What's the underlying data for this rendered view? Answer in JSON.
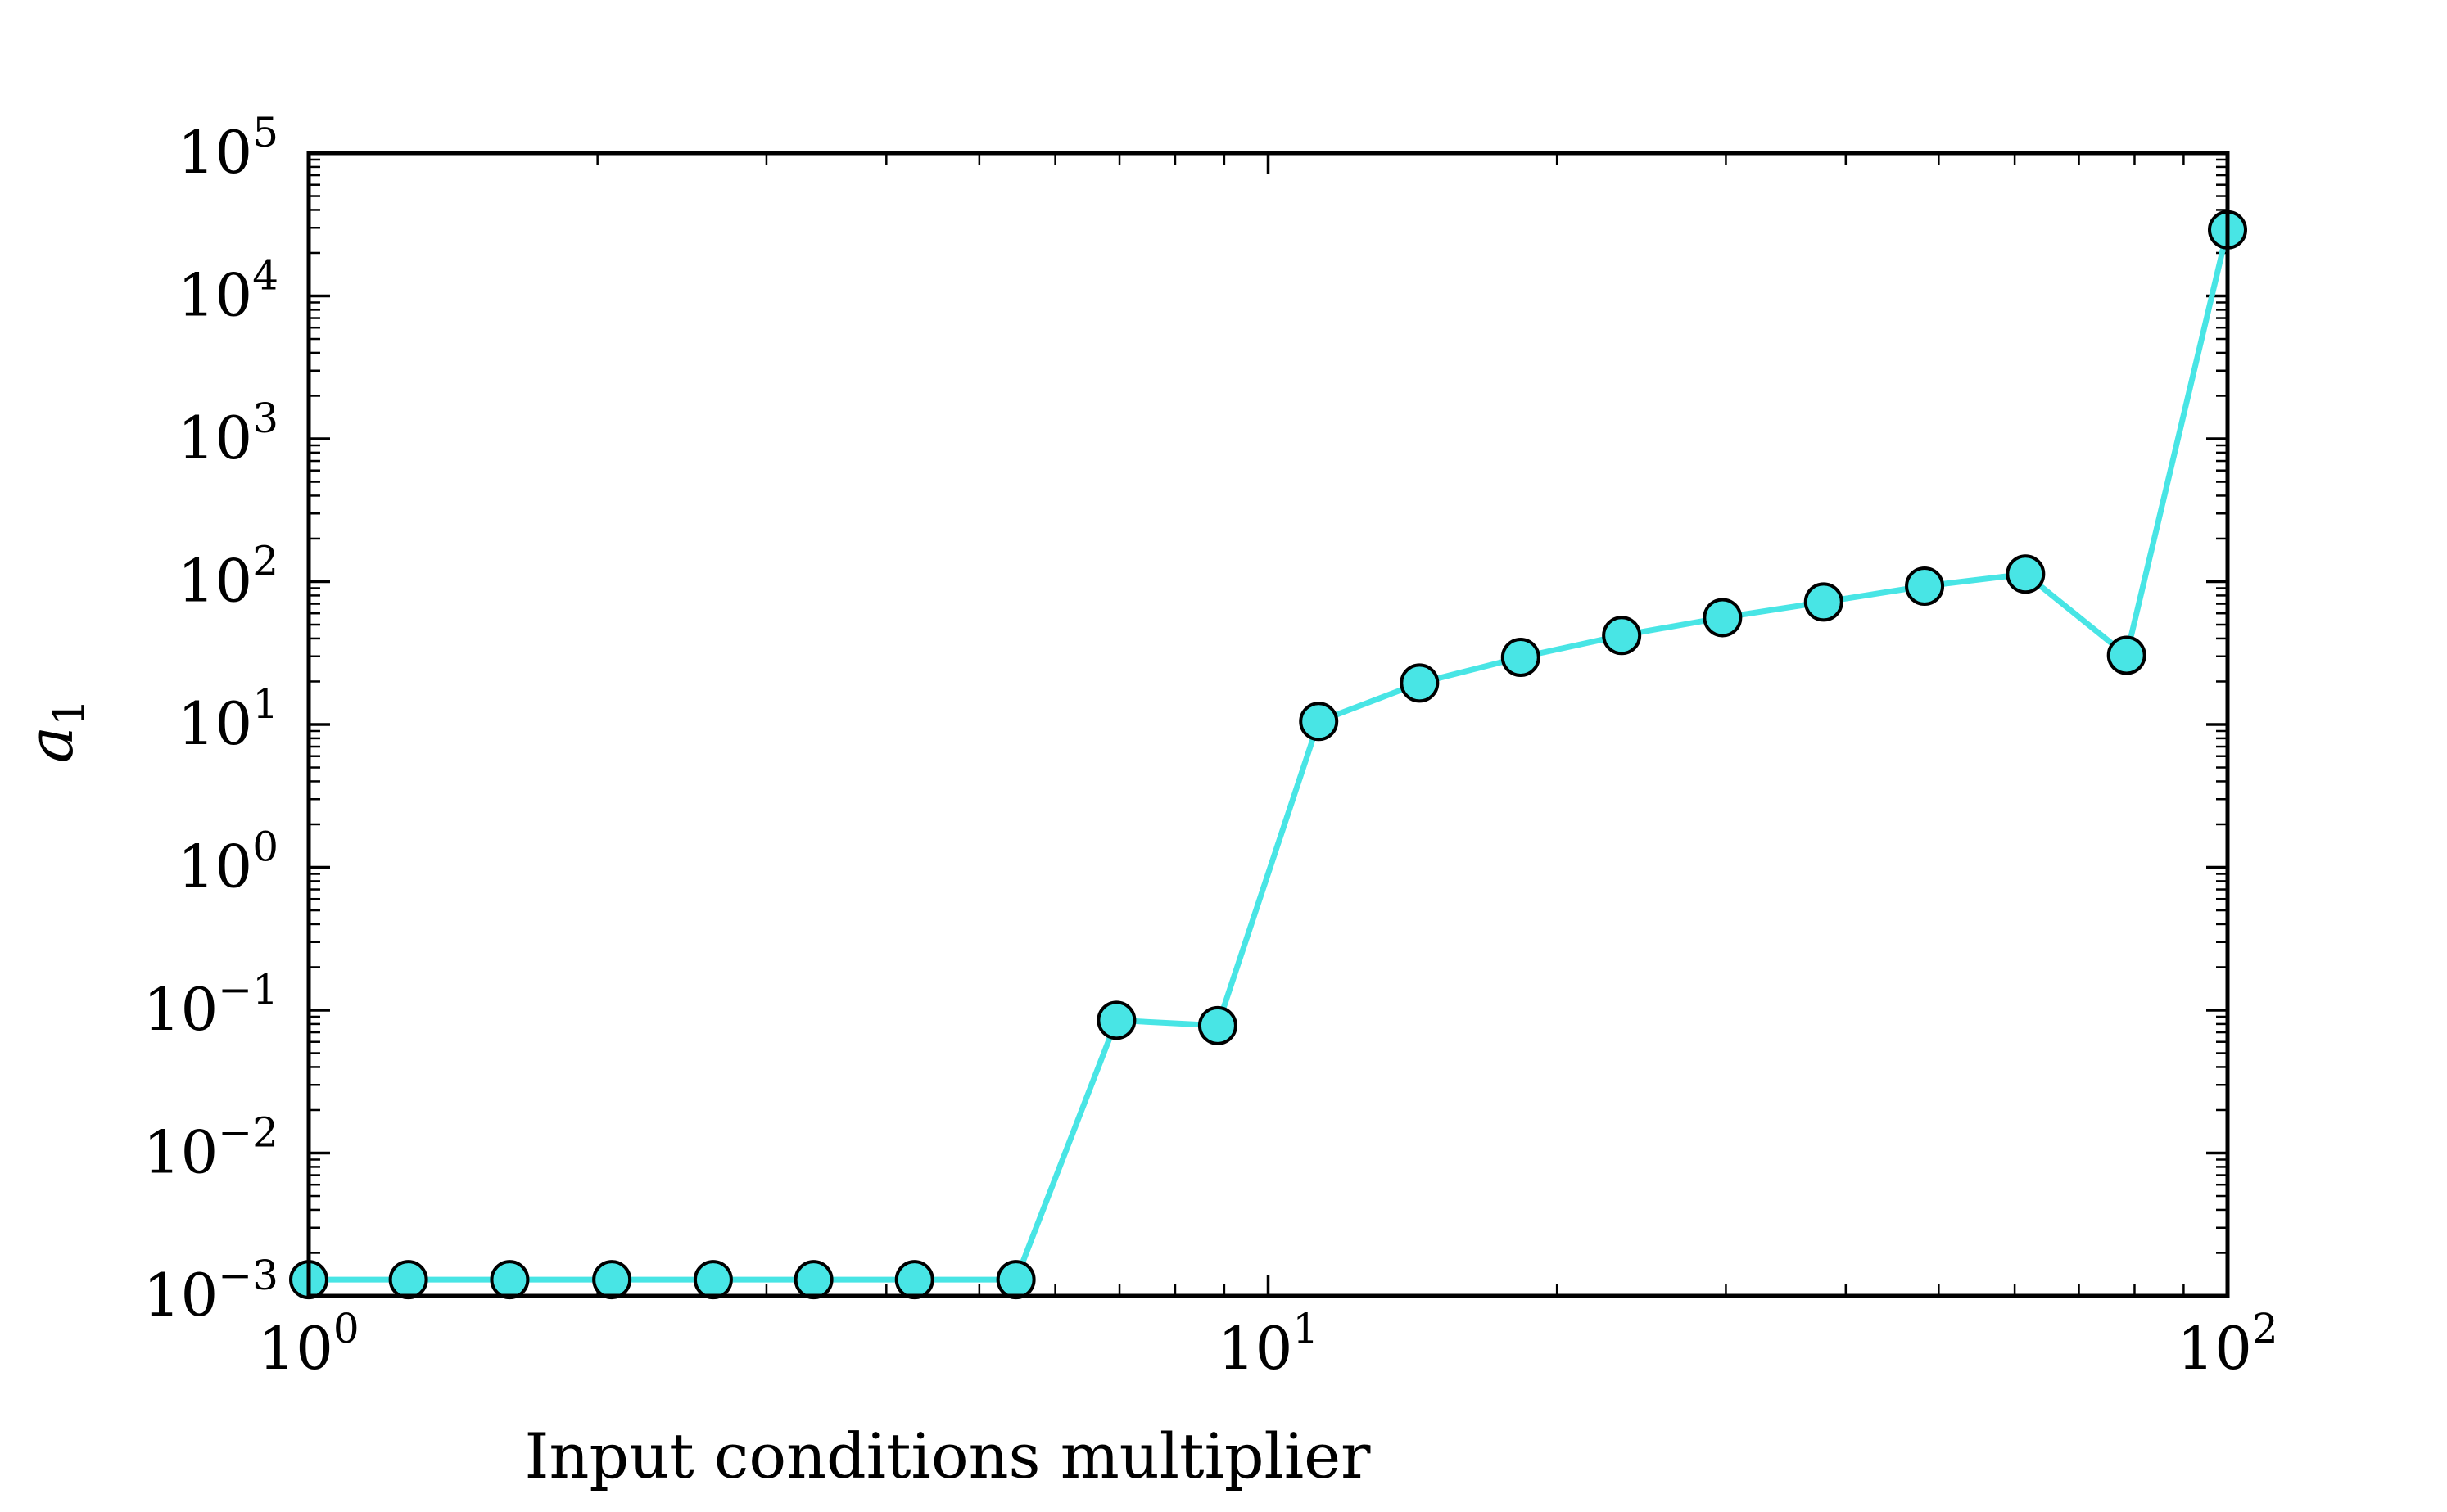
{
  "chart_data": {
    "type": "line",
    "title": "",
    "xlabel": "Input conditions multiplier",
    "ylabel": "a",
    "ylabel_subscript": "1",
    "x_scale": "log",
    "y_scale": "log",
    "xlim": [
      1,
      100
    ],
    "ylim": [
      0.001,
      100000
    ],
    "grid": false,
    "legend": "none",
    "x_ticks": [
      {
        "base": "10",
        "exp": "0",
        "value": 1
      },
      {
        "base": "10",
        "exp": "1",
        "value": 10
      },
      {
        "base": "10",
        "exp": "2",
        "value": 100
      }
    ],
    "y_ticks": [
      {
        "base": "10",
        "exp": "−3",
        "value": 0.001
      },
      {
        "base": "10",
        "exp": "−2",
        "value": 0.01
      },
      {
        "base": "10",
        "exp": "−1",
        "value": 0.1
      },
      {
        "base": "10",
        "exp": "0",
        "value": 1
      },
      {
        "base": "10",
        "exp": "1",
        "value": 10
      },
      {
        "base": "10",
        "exp": "2",
        "value": 100
      },
      {
        "base": "10",
        "exp": "3",
        "value": 1000
      },
      {
        "base": "10",
        "exp": "4",
        "value": 10000
      },
      {
        "base": "10",
        "exp": "5",
        "value": 100000
      }
    ],
    "series": [
      {
        "color": "#48e5e5",
        "marker": "circle",
        "x": [
          1.0,
          1.27,
          1.62,
          2.07,
          2.64,
          3.36,
          4.28,
          5.46,
          6.95,
          8.86,
          11.29,
          14.38,
          18.33,
          23.36,
          29.76,
          37.93,
          48.33,
          61.58,
          78.48,
          100.0
        ],
        "y": [
          0.0013,
          0.0013,
          0.0013,
          0.0013,
          0.0013,
          0.0013,
          0.0013,
          0.0013,
          0.085,
          0.078,
          10.5,
          19.5,
          29.5,
          42,
          56,
          72,
          93,
          113,
          30.5,
          29000
        ]
      }
    ]
  }
}
